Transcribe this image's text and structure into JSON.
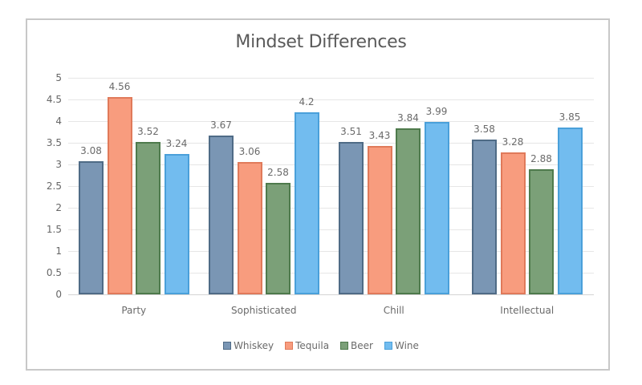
{
  "chart_data": {
    "type": "bar",
    "title": "Mindset Differences",
    "xlabel": "",
    "ylabel": "",
    "ylim": [
      0,
      5
    ],
    "yticks": [
      "0",
      "0.5",
      "1",
      "1.5",
      "2",
      "2.5",
      "3",
      "3.5",
      "4",
      "4.5",
      "5"
    ],
    "grid": true,
    "legend_position": "bottom",
    "categories": [
      "Party",
      "Sophisticated",
      "Chill",
      "Intellectual"
    ],
    "series": [
      {
        "name": "Whiskey",
        "color": "#7a96b4",
        "border": "#4f6b86",
        "values": [
          3.08,
          3.67,
          3.51,
          3.58
        ],
        "labels": [
          "3.08",
          "3.67",
          "3.51",
          "3.58"
        ]
      },
      {
        "name": "Tequila",
        "color": "#f89c7e",
        "border": "#e07a5a",
        "values": [
          4.56,
          3.06,
          3.43,
          3.28
        ],
        "labels": [
          "4.56",
          "3.06",
          "3.43",
          "3.28"
        ]
      },
      {
        "name": "Beer",
        "color": "#7ba078",
        "border": "#4e7a4c",
        "values": [
          3.52,
          2.58,
          3.84,
          2.88
        ],
        "labels": [
          "3.52",
          "2.58",
          "3.84",
          "2.88"
        ]
      },
      {
        "name": "Wine",
        "color": "#72bcef",
        "border": "#4aa0da",
        "values": [
          3.24,
          4.2,
          3.99,
          3.85
        ],
        "labels": [
          "3.24",
          "4.2",
          "3.99",
          "3.85"
        ]
      }
    ]
  }
}
